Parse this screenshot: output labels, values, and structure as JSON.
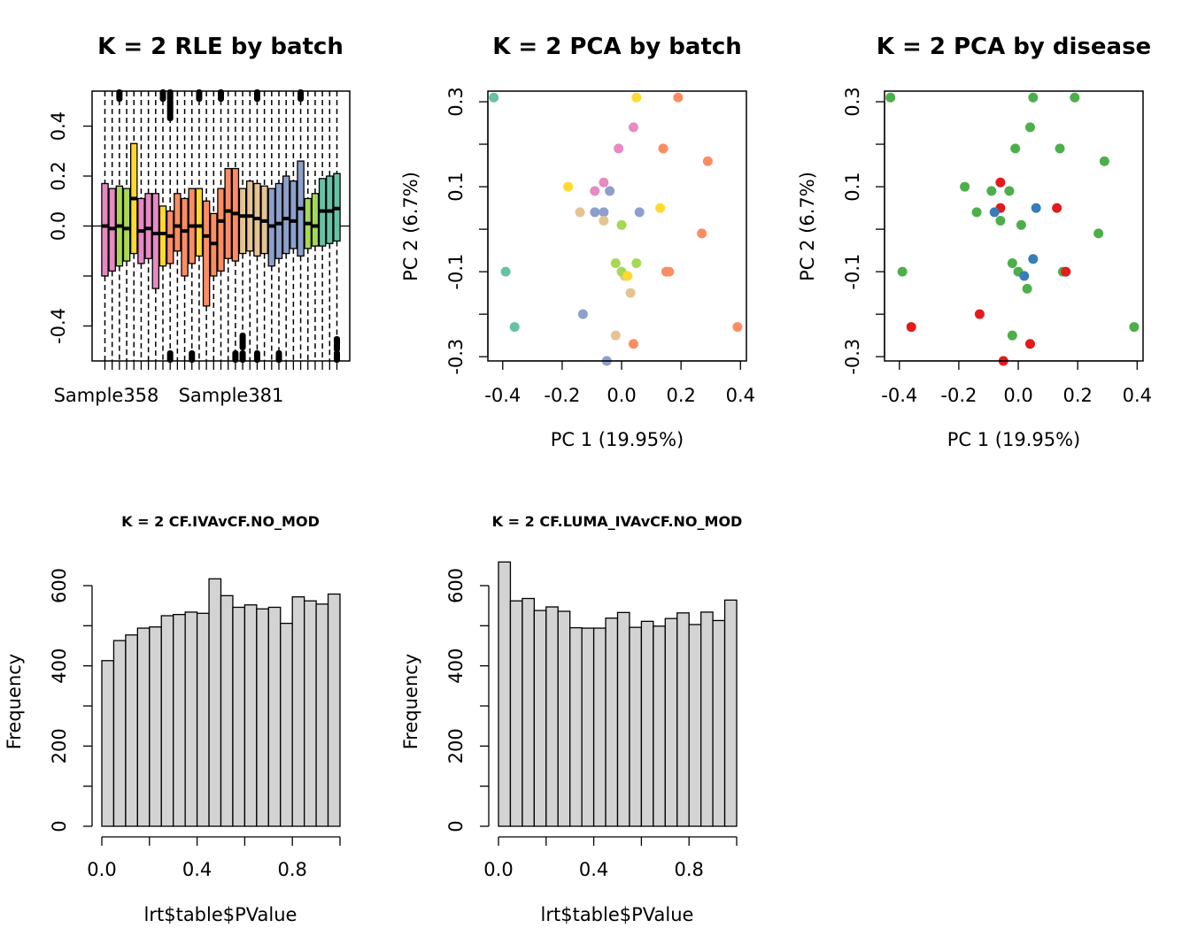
{
  "chart_data": [
    {
      "type": "boxplot",
      "title": "K = 2 RLE by batch",
      "x_tick_labels": [
        "Sample358",
        "Sample381"
      ],
      "y_ticks": [
        -0.4,
        0.0,
        0.2,
        0.4
      ],
      "ylim": [
        -0.54,
        0.54
      ],
      "hline": 0,
      "boxes": [
        {
          "color": "#E78AC3",
          "q1": -0.2,
          "median": 0.0,
          "q3": 0.17
        },
        {
          "color": "#E78AC3",
          "q1": -0.18,
          "median": -0.01,
          "q3": 0.15
        },
        {
          "color": "#A6D854",
          "q1": -0.16,
          "median": 0.0,
          "q3": 0.16
        },
        {
          "color": "#A6D854",
          "q1": -0.14,
          "median": -0.01,
          "q3": 0.15
        },
        {
          "color": "#FFD92F",
          "q1": -0.11,
          "median": 0.11,
          "q3": 0.33
        },
        {
          "color": "#E78AC3",
          "q1": -0.15,
          "median": -0.02,
          "q3": 0.11
        },
        {
          "color": "#E78AC3",
          "q1": -0.13,
          "median": -0.01,
          "q3": 0.13
        },
        {
          "color": "#E78AC3",
          "q1": -0.25,
          "median": -0.03,
          "q3": 0.13
        },
        {
          "color": "#FFD92F",
          "q1": -0.16,
          "median": -0.03,
          "q3": 0.08
        },
        {
          "color": "#FC8D62",
          "q1": -0.15,
          "median": -0.04,
          "q3": 0.06
        },
        {
          "color": "#FC8D62",
          "q1": -0.1,
          "median": 0.0,
          "q3": 0.13
        },
        {
          "color": "#FC8D62",
          "q1": -0.2,
          "median": -0.02,
          "q3": 0.11
        },
        {
          "color": "#FC8D62",
          "q1": -0.15,
          "median": 0.0,
          "q3": 0.15
        },
        {
          "color": "#FFD92F",
          "q1": -0.12,
          "median": 0.0,
          "q3": 0.15
        },
        {
          "color": "#FC8D62",
          "q1": -0.32,
          "median": -0.04,
          "q3": 0.1
        },
        {
          "color": "#FC8D62",
          "q1": -0.2,
          "median": -0.07,
          "q3": 0.05
        },
        {
          "color": "#FC8D62",
          "q1": -0.18,
          "median": 0.02,
          "q3": 0.15
        },
        {
          "color": "#FC8D62",
          "q1": -0.13,
          "median": 0.06,
          "q3": 0.23
        },
        {
          "color": "#FC8D62",
          "q1": -0.14,
          "median": 0.05,
          "q3": 0.23
        },
        {
          "color": "#E5C494",
          "q1": -0.11,
          "median": 0.04,
          "q3": 0.15
        },
        {
          "color": "#E5C494",
          "q1": -0.1,
          "median": 0.04,
          "q3": 0.18
        },
        {
          "color": "#E5C494",
          "q1": -0.12,
          "median": 0.03,
          "q3": 0.17
        },
        {
          "color": "#E5C494",
          "q1": -0.11,
          "median": 0.02,
          "q3": 0.16
        },
        {
          "color": "#8DA0CB",
          "q1": -0.16,
          "median": 0.0,
          "q3": 0.15
        },
        {
          "color": "#8DA0CB",
          "q1": -0.13,
          "median": 0.01,
          "q3": 0.17
        },
        {
          "color": "#8DA0CB",
          "q1": -0.11,
          "median": 0.03,
          "q3": 0.2
        },
        {
          "color": "#8DA0CB",
          "q1": -0.09,
          "median": 0.02,
          "q3": 0.18
        },
        {
          "color": "#8DA0CB",
          "q1": -0.12,
          "median": 0.07,
          "q3": 0.26
        },
        {
          "color": "#A6D854",
          "q1": -0.09,
          "median": 0.01,
          "q3": 0.11
        },
        {
          "color": "#A6D854",
          "q1": -0.08,
          "median": 0.0,
          "q3": 0.13
        },
        {
          "color": "#66C2A5",
          "q1": -0.08,
          "median": 0.06,
          "q3": 0.19
        },
        {
          "color": "#66C2A5",
          "q1": -0.07,
          "median": 0.06,
          "q3": 0.2
        },
        {
          "color": "#66C2A5",
          "q1": -0.06,
          "median": 0.07,
          "q3": 0.21
        }
      ]
    },
    {
      "type": "scatter",
      "title": "K = 2 PCA by batch",
      "xlabel": "PC 1 (19.95%)",
      "ylabel": "PC 2 (6.7%)",
      "xlim": [
        -0.45,
        0.42
      ],
      "ylim": [
        -0.31,
        0.325
      ],
      "x_ticks": [
        -0.4,
        -0.2,
        0.0,
        0.2,
        0.4
      ],
      "y_ticks": [
        -0.3,
        -0.2,
        -0.1,
        0.0,
        0.1,
        0.2,
        0.3
      ],
      "y_tick_labels_shown": [
        -0.3,
        -0.1,
        0.1,
        0.3
      ],
      "points": [
        {
          "x": -0.43,
          "y": 0.31,
          "color": "#66C2A5"
        },
        {
          "x": -0.39,
          "y": -0.1,
          "color": "#66C2A5"
        },
        {
          "x": -0.36,
          "y": -0.23,
          "color": "#66C2A5"
        },
        {
          "x": 0.05,
          "y": 0.31,
          "color": "#FFD92F"
        },
        {
          "x": -0.18,
          "y": 0.1,
          "color": "#FFD92F"
        },
        {
          "x": 0.13,
          "y": 0.05,
          "color": "#FFD92F"
        },
        {
          "x": 0.19,
          "y": 0.31,
          "color": "#FC8D62"
        },
        {
          "x": 0.14,
          "y": 0.19,
          "color": "#FC8D62"
        },
        {
          "x": 0.29,
          "y": 0.16,
          "color": "#FC8D62"
        },
        {
          "x": 0.27,
          "y": -0.01,
          "color": "#FC8D62"
        },
        {
          "x": 0.15,
          "y": -0.1,
          "color": "#FC8D62"
        },
        {
          "x": 0.16,
          "y": -0.1,
          "color": "#FC8D62"
        },
        {
          "x": 0.39,
          "y": -0.23,
          "color": "#FC8D62"
        },
        {
          "x": 0.04,
          "y": -0.27,
          "color": "#FC8D62"
        },
        {
          "x": 0.04,
          "y": 0.24,
          "color": "#E78AC3"
        },
        {
          "x": -0.01,
          "y": 0.19,
          "color": "#E78AC3"
        },
        {
          "x": -0.06,
          "y": 0.11,
          "color": "#E78AC3"
        },
        {
          "x": -0.09,
          "y": 0.09,
          "color": "#E78AC3"
        },
        {
          "x": -0.04,
          "y": 0.09,
          "color": "#8DA0CB"
        },
        {
          "x": -0.06,
          "y": 0.04,
          "color": "#8DA0CB"
        },
        {
          "x": -0.09,
          "y": 0.04,
          "color": "#8DA0CB"
        },
        {
          "x": 0.06,
          "y": 0.04,
          "color": "#8DA0CB"
        },
        {
          "x": -0.13,
          "y": -0.2,
          "color": "#8DA0CB"
        },
        {
          "x": -0.05,
          "y": -0.31,
          "color": "#8DA0CB"
        },
        {
          "x": -0.14,
          "y": 0.04,
          "color": "#E5C494"
        },
        {
          "x": -0.06,
          "y": 0.02,
          "color": "#E5C494"
        },
        {
          "x": 0.01,
          "y": -0.11,
          "color": "#E5C494"
        },
        {
          "x": 0.03,
          "y": -0.15,
          "color": "#E5C494"
        },
        {
          "x": -0.02,
          "y": -0.25,
          "color": "#E5C494"
        },
        {
          "x": 0.0,
          "y": 0.01,
          "color": "#A6D854"
        },
        {
          "x": -0.02,
          "y": -0.08,
          "color": "#A6D854"
        },
        {
          "x": 0.05,
          "y": -0.08,
          "color": "#A6D854"
        },
        {
          "x": 0.0,
          "y": -0.1,
          "color": "#A6D854"
        },
        {
          "x": 0.02,
          "y": -0.11,
          "color": "#FFD92F"
        }
      ]
    },
    {
      "type": "scatter",
      "title": "K = 2 PCA by disease",
      "xlabel": "PC 1 (19.95%)",
      "ylabel": "PC 2 (6.7%)",
      "xlim": [
        -0.45,
        0.42
      ],
      "ylim": [
        -0.31,
        0.325
      ],
      "x_ticks": [
        -0.4,
        -0.2,
        0.0,
        0.2,
        0.4
      ],
      "y_ticks": [
        -0.3,
        -0.2,
        -0.1,
        0.0,
        0.1,
        0.2,
        0.3
      ],
      "y_tick_labels_shown": [
        -0.3,
        -0.1,
        0.1,
        0.3
      ],
      "points": [
        {
          "x": -0.43,
          "y": 0.31,
          "color": "#4DAF4A"
        },
        {
          "x": 0.05,
          "y": 0.31,
          "color": "#4DAF4A"
        },
        {
          "x": 0.19,
          "y": 0.31,
          "color": "#4DAF4A"
        },
        {
          "x": 0.04,
          "y": 0.24,
          "color": "#4DAF4A"
        },
        {
          "x": -0.01,
          "y": 0.19,
          "color": "#4DAF4A"
        },
        {
          "x": 0.14,
          "y": 0.19,
          "color": "#4DAF4A"
        },
        {
          "x": 0.29,
          "y": 0.16,
          "color": "#4DAF4A"
        },
        {
          "x": -0.18,
          "y": 0.1,
          "color": "#4DAF4A"
        },
        {
          "x": -0.09,
          "y": 0.09,
          "color": "#4DAF4A"
        },
        {
          "x": -0.03,
          "y": 0.09,
          "color": "#4DAF4A"
        },
        {
          "x": -0.14,
          "y": 0.04,
          "color": "#4DAF4A"
        },
        {
          "x": -0.06,
          "y": 0.02,
          "color": "#4DAF4A"
        },
        {
          "x": 0.01,
          "y": 0.01,
          "color": "#4DAF4A"
        },
        {
          "x": 0.27,
          "y": -0.01,
          "color": "#4DAF4A"
        },
        {
          "x": -0.39,
          "y": -0.1,
          "color": "#4DAF4A"
        },
        {
          "x": -0.02,
          "y": -0.08,
          "color": "#4DAF4A"
        },
        {
          "x": 0.0,
          "y": -0.1,
          "color": "#4DAF4A"
        },
        {
          "x": 0.15,
          "y": -0.1,
          "color": "#4DAF4A"
        },
        {
          "x": 0.03,
          "y": -0.14,
          "color": "#4DAF4A"
        },
        {
          "x": -0.02,
          "y": -0.25,
          "color": "#4DAF4A"
        },
        {
          "x": 0.39,
          "y": -0.23,
          "color": "#4DAF4A"
        },
        {
          "x": -0.06,
          "y": 0.11,
          "color": "#E41A1C"
        },
        {
          "x": -0.06,
          "y": 0.05,
          "color": "#E41A1C"
        },
        {
          "x": 0.13,
          "y": 0.05,
          "color": "#E41A1C"
        },
        {
          "x": 0.16,
          "y": -0.1,
          "color": "#E41A1C"
        },
        {
          "x": -0.13,
          "y": -0.2,
          "color": "#E41A1C"
        },
        {
          "x": -0.36,
          "y": -0.23,
          "color": "#E41A1C"
        },
        {
          "x": 0.04,
          "y": -0.27,
          "color": "#E41A1C"
        },
        {
          "x": -0.05,
          "y": -0.31,
          "color": "#E41A1C"
        },
        {
          "x": 0.06,
          "y": 0.05,
          "color": "#377EB8"
        },
        {
          "x": -0.08,
          "y": 0.04,
          "color": "#377EB8"
        },
        {
          "x": 0.05,
          "y": -0.07,
          "color": "#377EB8"
        },
        {
          "x": 0.02,
          "y": -0.11,
          "color": "#377EB8"
        }
      ]
    },
    {
      "type": "histogram",
      "title": "K = 2 CF.IVAvCF.NO_MOD",
      "xlabel": "lrt$table$PValue",
      "ylabel": "Frequency",
      "xlim": [
        0,
        1
      ],
      "ylim": [
        0,
        600
      ],
      "x_ticks": [
        0.0,
        0.4,
        0.8
      ],
      "x_minor_ticks": [
        0.0,
        0.2,
        0.4,
        0.6,
        0.8,
        1.0
      ],
      "y_ticks": [
        0,
        200,
        400,
        600
      ],
      "y_minor_ticks": [
        0,
        100,
        200,
        300,
        400,
        500,
        600
      ],
      "bin_width": 0.05,
      "values": [
        413,
        463,
        477,
        494,
        497,
        525,
        528,
        534,
        531,
        617,
        575,
        546,
        552,
        542,
        546,
        506,
        572,
        562,
        554,
        579
      ]
    },
    {
      "type": "histogram",
      "title": "K = 2 CF.LUMA_IVAvCF.NO_MOD",
      "xlabel": "lrt$table$PValue",
      "ylabel": "Frequency",
      "xlim": [
        0,
        1
      ],
      "ylim": [
        0,
        600
      ],
      "x_ticks": [
        0.0,
        0.4,
        0.8
      ],
      "x_minor_ticks": [
        0.0,
        0.2,
        0.4,
        0.6,
        0.8,
        1.0
      ],
      "y_ticks": [
        0,
        200,
        400,
        600
      ],
      "y_minor_ticks": [
        0,
        100,
        200,
        300,
        400,
        500,
        600
      ],
      "bin_width": 0.05,
      "values": [
        659,
        562,
        568,
        538,
        547,
        536,
        495,
        494,
        494,
        519,
        533,
        496,
        511,
        499,
        518,
        532,
        503,
        534,
        513,
        564
      ]
    }
  ]
}
